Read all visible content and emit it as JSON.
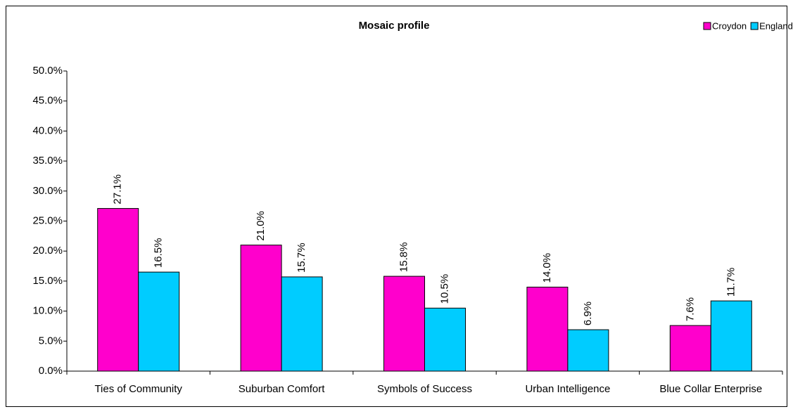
{
  "chart_data": {
    "type": "bar",
    "title": "Mosaic profile",
    "categories": [
      "Ties of Community",
      "Suburban Comfort",
      "Symbols of Success",
      "Urban Intelligence",
      "Blue Collar Enterprise"
    ],
    "series": [
      {
        "name": "Croydon",
        "color": "#ff00cc",
        "values": [
          27.1,
          21.0,
          15.8,
          14.0,
          7.6
        ],
        "value_labels": [
          "27.1%",
          "21.0%",
          "15.8%",
          "14.0%",
          "7.6%"
        ]
      },
      {
        "name": "England",
        "color": "#00ccff",
        "values": [
          16.5,
          15.7,
          10.5,
          6.9,
          11.7
        ],
        "value_labels": [
          "16.5%",
          "15.7%",
          "10.5%",
          "6.9%",
          "11.7%"
        ]
      }
    ],
    "ylim": [
      0,
      50
    ],
    "yticks": [
      {
        "value": 0,
        "label": "0.0%"
      },
      {
        "value": 5,
        "label": "5.0%"
      },
      {
        "value": 10,
        "label": "10.0%"
      },
      {
        "value": 15,
        "label": "15.0%"
      },
      {
        "value": 20,
        "label": "20.0%"
      },
      {
        "value": 25,
        "label": "25.0%"
      },
      {
        "value": 30,
        "label": "30.0%"
      },
      {
        "value": 35,
        "label": "35.0%"
      },
      {
        "value": 40,
        "label": "40.0%"
      },
      {
        "value": 45,
        "label": "45.0%"
      },
      {
        "value": 50,
        "label": "50.0%"
      }
    ],
    "legend": "top-right"
  }
}
